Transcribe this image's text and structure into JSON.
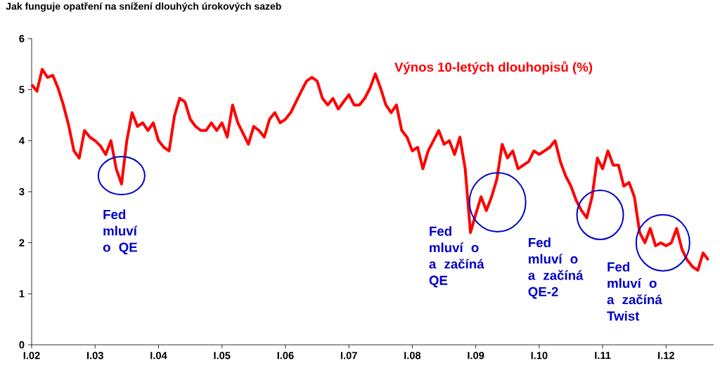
{
  "chart_data": {
    "type": "line",
    "title": "Jak funguje opatření na snížení dlouhých úrokových sazeb",
    "x": [
      "2002-01",
      "2002-02",
      "2002-03",
      "2002-04",
      "2002-05",
      "2002-06",
      "2002-07",
      "2002-08",
      "2002-09",
      "2002-10",
      "2002-11",
      "2002-12",
      "2003-01",
      "2003-02",
      "2003-03",
      "2003-04",
      "2003-05",
      "2003-06",
      "2003-07",
      "2003-08",
      "2003-09",
      "2003-10",
      "2003-11",
      "2003-12",
      "2004-01",
      "2004-02",
      "2004-03",
      "2004-04",
      "2004-05",
      "2004-06",
      "2004-07",
      "2004-08",
      "2004-09",
      "2004-10",
      "2004-11",
      "2004-12",
      "2005-01",
      "2005-02",
      "2005-03",
      "2005-04",
      "2005-05",
      "2005-06",
      "2005-07",
      "2005-08",
      "2005-09",
      "2005-10",
      "2005-11",
      "2005-12",
      "2006-01",
      "2006-02",
      "2006-03",
      "2006-04",
      "2006-05",
      "2006-06",
      "2006-07",
      "2006-08",
      "2006-09",
      "2006-10",
      "2006-11",
      "2006-12",
      "2007-01",
      "2007-02",
      "2007-03",
      "2007-04",
      "2007-05",
      "2007-06",
      "2007-07",
      "2007-08",
      "2007-09",
      "2007-10",
      "2007-11",
      "2007-12",
      "2008-01",
      "2008-02",
      "2008-03",
      "2008-04",
      "2008-05",
      "2008-06",
      "2008-07",
      "2008-08",
      "2008-09",
      "2008-10",
      "2008-11",
      "2008-12",
      "2009-01",
      "2009-02",
      "2009-03",
      "2009-04",
      "2009-05",
      "2009-06",
      "2009-07",
      "2009-08",
      "2009-09",
      "2009-10",
      "2009-11",
      "2009-12",
      "2010-01",
      "2010-02",
      "2010-03",
      "2010-04",
      "2010-05",
      "2010-06",
      "2010-07",
      "2010-08",
      "2010-09",
      "2010-10",
      "2010-11",
      "2010-12",
      "2011-01",
      "2011-02",
      "2011-03",
      "2011-04",
      "2011-05",
      "2011-06",
      "2011-07",
      "2011-08",
      "2011-09",
      "2011-10",
      "2011-11",
      "2011-12",
      "2012-01",
      "2012-02",
      "2012-03",
      "2012-04",
      "2012-05",
      "2012-06",
      "2012-07",
      "2012-08",
      "2012-09"
    ],
    "series": [
      {
        "name": "Výnos 10-letých dlouhopisů (%)",
        "color": "#ff0000",
        "values": [
          5.1,
          4.97,
          5.4,
          5.24,
          5.28,
          5.03,
          4.7,
          4.3,
          3.8,
          3.66,
          4.2,
          4.07,
          4.0,
          3.9,
          3.73,
          4.0,
          3.45,
          3.15,
          4.0,
          4.55,
          4.28,
          4.35,
          4.2,
          4.35,
          4.0,
          3.87,
          3.8,
          4.48,
          4.83,
          4.76,
          4.42,
          4.28,
          4.2,
          4.2,
          4.35,
          4.2,
          4.35,
          4.07,
          4.7,
          4.35,
          4.14,
          3.93,
          4.28,
          4.2,
          4.07,
          4.42,
          4.55,
          4.35,
          4.42,
          4.55,
          4.76,
          4.97,
          5.17,
          5.24,
          5.17,
          4.83,
          4.7,
          4.83,
          4.62,
          4.76,
          4.9,
          4.7,
          4.7,
          4.83,
          5.03,
          5.31,
          5.03,
          4.7,
          4.55,
          4.7,
          4.2,
          4.07,
          3.8,
          3.87,
          3.45,
          3.8,
          4.0,
          4.2,
          3.93,
          4.0,
          3.73,
          4.07,
          3.45,
          2.2,
          2.56,
          2.9,
          2.63,
          2.9,
          3.25,
          3.93,
          3.66,
          3.8,
          3.45,
          3.52,
          3.59,
          3.8,
          3.73,
          3.8,
          3.87,
          4.0,
          3.59,
          3.31,
          3.11,
          2.83,
          2.63,
          2.49,
          2.9,
          3.66,
          3.45,
          3.8,
          3.52,
          3.52,
          3.11,
          3.18,
          2.9,
          2.2,
          2.0,
          2.28,
          1.94,
          2.0,
          1.94,
          2.0,
          2.28,
          1.87,
          1.66,
          1.53,
          1.46,
          1.8,
          1.66
        ]
      }
    ],
    "xlim": [
      "2002-01",
      "2012-10"
    ],
    "xticks": [
      {
        "value": "2002-01",
        "label": "I.02"
      },
      {
        "value": "2003-01",
        "label": "I.03"
      },
      {
        "value": "2004-01",
        "label": "I.04"
      },
      {
        "value": "2005-01",
        "label": "I.05"
      },
      {
        "value": "2006-01",
        "label": "I.06"
      },
      {
        "value": "2007-01",
        "label": "I.07"
      },
      {
        "value": "2008-01",
        "label": "I.08"
      },
      {
        "value": "2009-01",
        "label": "I.09"
      },
      {
        "value": "2010-01",
        "label": "I.10"
      },
      {
        "value": "2011-01",
        "label": "I.11"
      },
      {
        "value": "2012-01",
        "label": "I.12"
      }
    ],
    "ylim": [
      0,
      6
    ],
    "yticks": [
      0,
      1,
      2,
      3,
      4,
      5,
      6
    ],
    "annotations": [
      {
        "text": "Fed mluví o QE",
        "x": "2003-06",
        "y": 3.15
      },
      {
        "text": "Fed mluví o a začíná QE",
        "x": "2009-03",
        "y": 2.63
      },
      {
        "text": "Fed mluví o a začíná QE-2",
        "x": "2010-10",
        "y": 2.49
      },
      {
        "text": "Fed mluví o a začíná Twist",
        "x": "2011-12",
        "y": 2.0
      }
    ]
  }
}
